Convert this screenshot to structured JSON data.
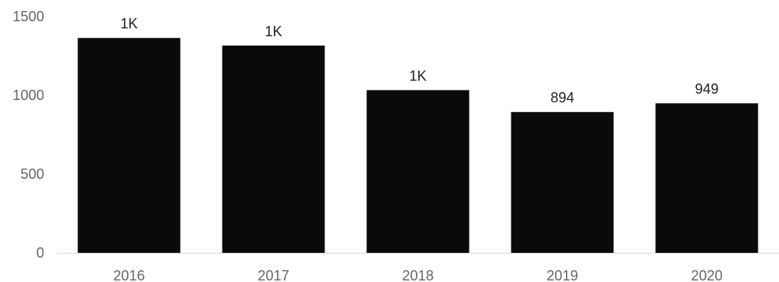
{
  "chart_data": {
    "type": "bar",
    "title": "",
    "xlabel": "",
    "ylabel": "",
    "categories": [
      "2016",
      "2017",
      "2018",
      "2019",
      "2020"
    ],
    "values": [
      1364,
      1316,
      1033,
      894,
      949
    ],
    "data_labels": [
      "1K",
      "1K",
      "1K",
      "894",
      "949"
    ],
    "ylim": [
      0,
      1500
    ],
    "yticks": [
      0,
      500,
      1000,
      1500
    ],
    "ytick_labels": [
      "0",
      "500",
      "1000",
      "1500"
    ],
    "grid": false,
    "legend": "none",
    "bar_color": "#0a0a0a",
    "axis_color": "#d9d9d9"
  }
}
